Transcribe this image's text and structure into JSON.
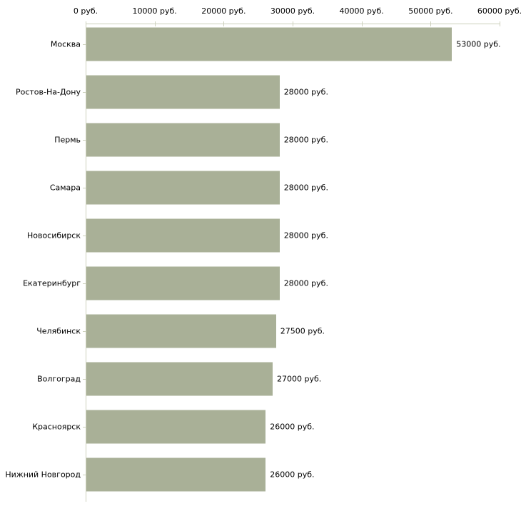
{
  "chart_data": {
    "type": "bar",
    "orientation": "horizontal",
    "title": "",
    "xlabel": "",
    "ylabel": "",
    "unit": "руб.",
    "categories": [
      "Москва",
      "Ростов-На-Дону",
      "Пермь",
      "Самара",
      "Новосибирск",
      "Екатеринбург",
      "Челябинск",
      "Волгоград",
      "Красноярск",
      "Нижний Новгород"
    ],
    "values": [
      53000,
      28000,
      28000,
      28000,
      28000,
      28000,
      27500,
      27000,
      26000,
      26000
    ],
    "value_labels": [
      "53000 руб.",
      "28000 руб.",
      "28000 руб.",
      "28000 руб.",
      "28000 руб.",
      "28000 руб.",
      "27500 руб.",
      "27000 руб.",
      "26000 руб.",
      "26000 руб."
    ],
    "x_ticks": [
      0,
      10000,
      20000,
      30000,
      40000,
      50000,
      60000
    ],
    "x_tick_labels": [
      "0 руб.",
      "10000 руб.",
      "20000 руб.",
      "30000 руб.",
      "40000 руб.",
      "50000 руб.",
      "60000 руб."
    ],
    "xlim": [
      0,
      60000
    ],
    "grid": false,
    "legend": false,
    "axis_position": "top-left",
    "bar_color": "#a9b097",
    "axis_color": "#ccd0bc",
    "text_color": "#000000",
    "background": "#ffffff"
  }
}
